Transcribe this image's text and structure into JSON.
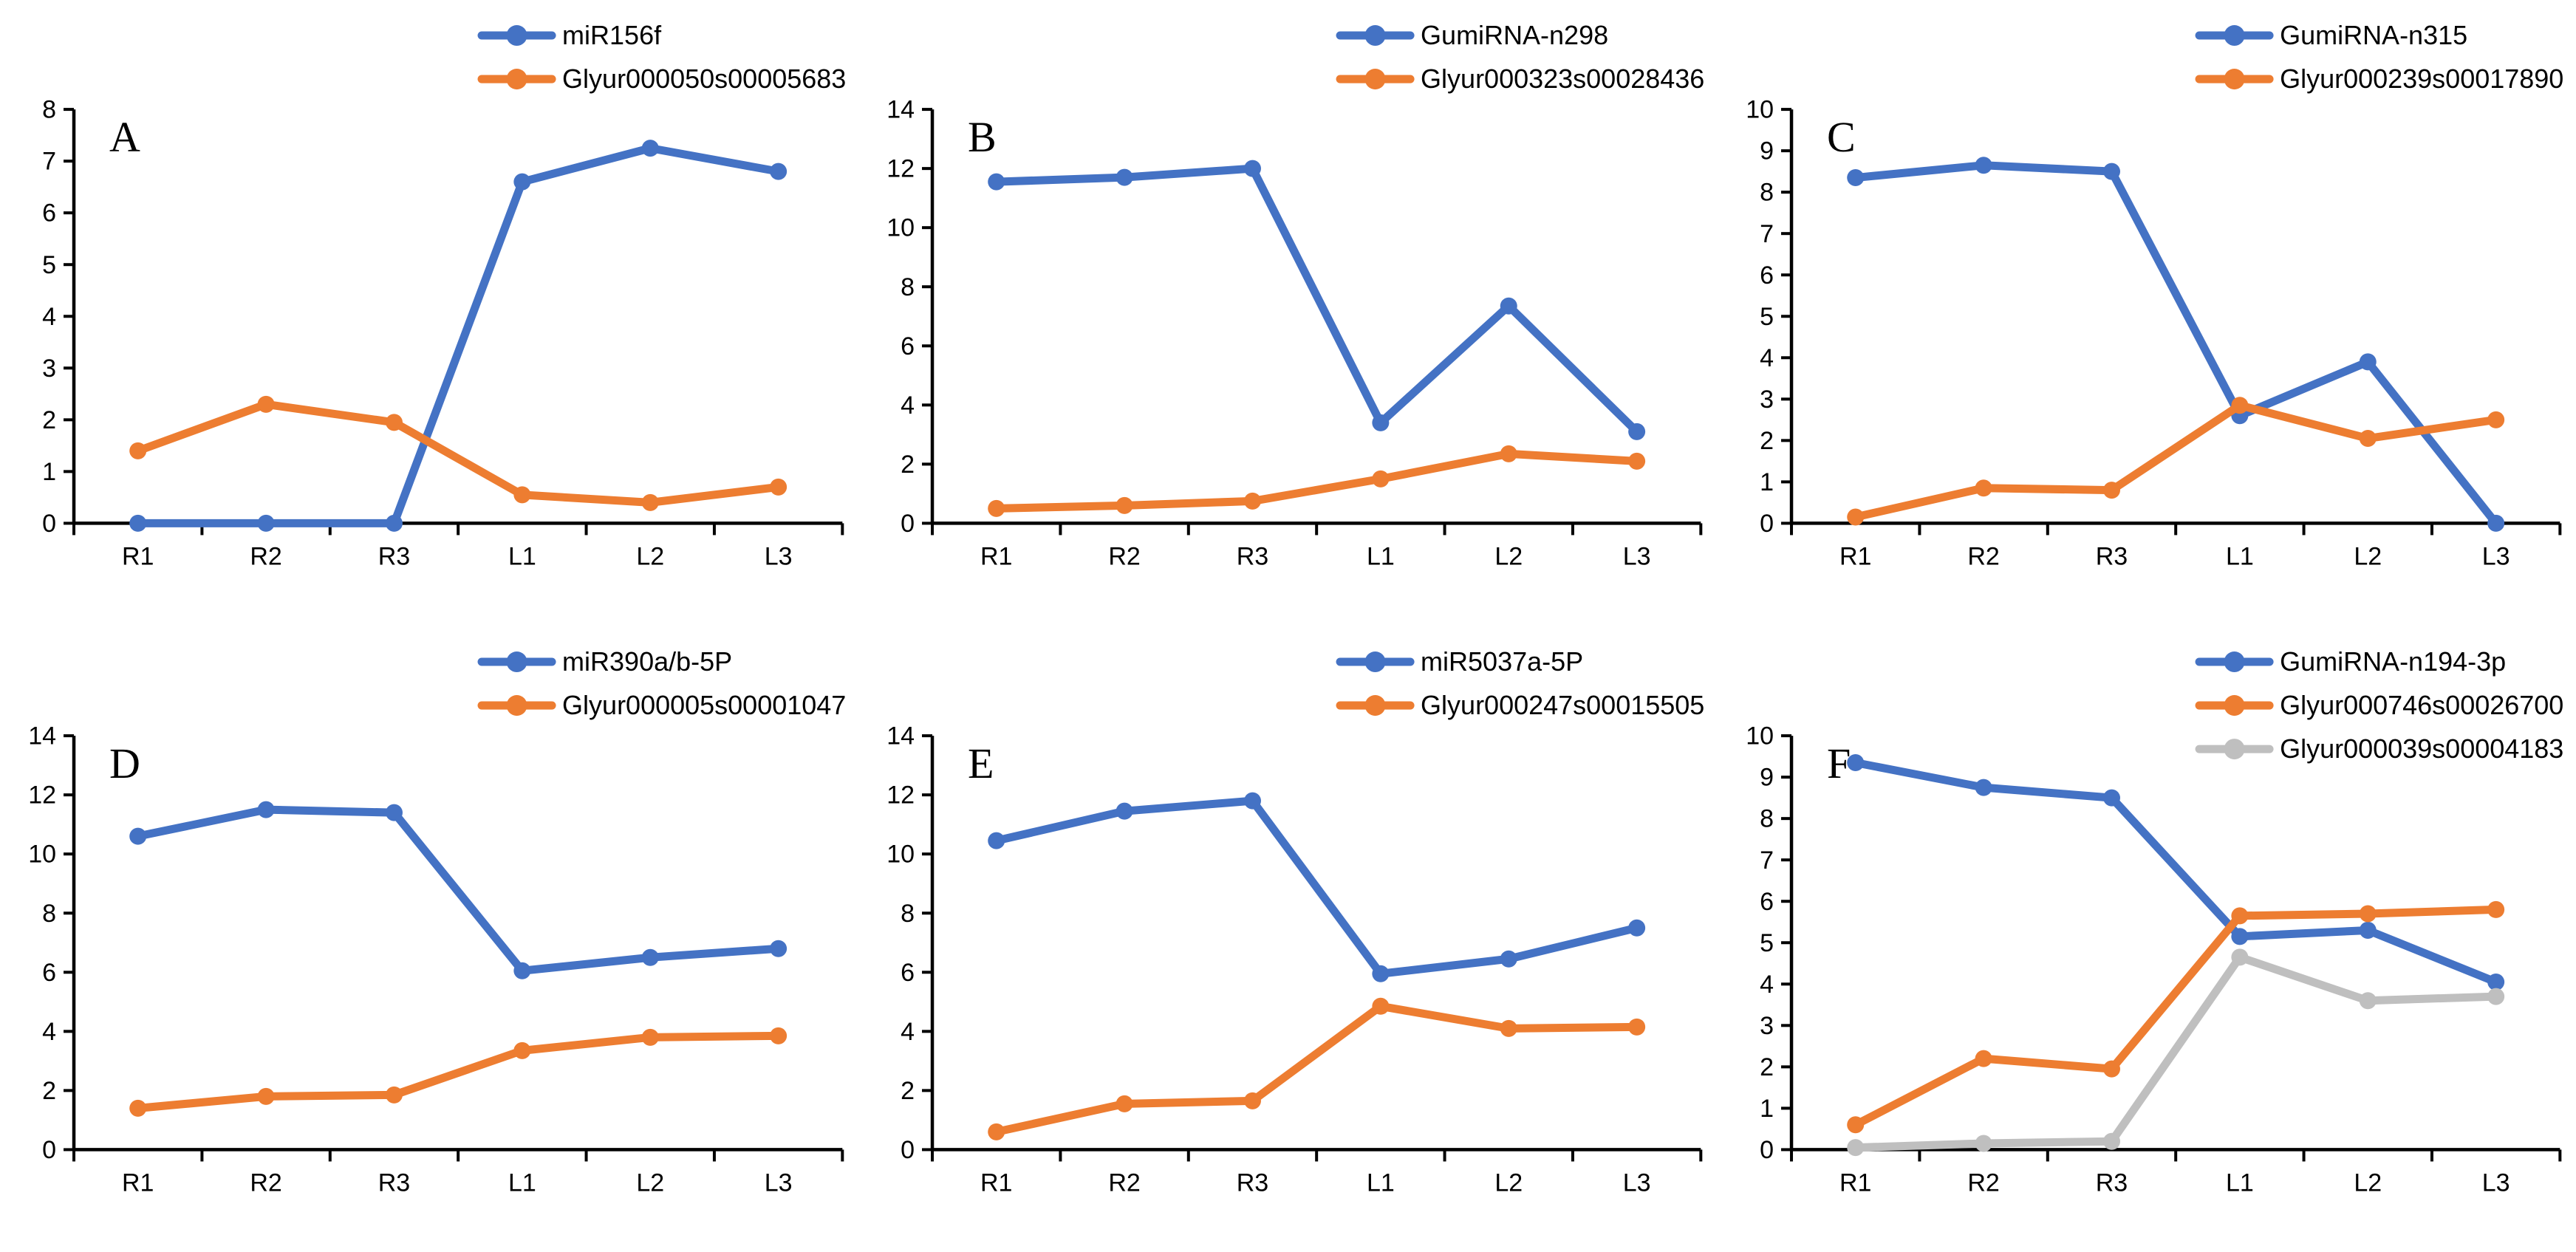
{
  "page": {
    "background": "#ffffff",
    "description": "Six-panel line chart figure comparing miRNA and target gene expression across root (R1-R3) and leaf (L1-L3) samples"
  },
  "colors": {
    "series_blue": "#4472C4",
    "series_orange": "#ED7D31",
    "series_gray": "#BFBFBF",
    "axis": "#000000",
    "text": "#000000"
  },
  "chart_data": [
    {
      "type": "line",
      "panel_label": "A",
      "categories": [
        "R1",
        "R2",
        "R3",
        "L1",
        "L2",
        "L3"
      ],
      "ylim": [
        0,
        8
      ],
      "ytick_step": 1,
      "ytick_labels": [
        "0",
        "1",
        "2",
        "3",
        "4",
        "5",
        "6",
        "7",
        "8"
      ],
      "grid": false,
      "legend_position": "top-right",
      "series": [
        {
          "name": "miR156f",
          "color": "#4472C4",
          "marker": "circle",
          "values": [
            0,
            0,
            0,
            6.6,
            7.25,
            6.8
          ]
        },
        {
          "name": "Glyur000050s00005683",
          "color": "#ED7D31",
          "marker": "circle",
          "values": [
            1.4,
            2.3,
            1.95,
            0.55,
            0.4,
            0.7
          ]
        }
      ]
    },
    {
      "type": "line",
      "panel_label": "B",
      "categories": [
        "R1",
        "R2",
        "R3",
        "L1",
        "L2",
        "L3"
      ],
      "ylim": [
        0,
        14
      ],
      "ytick_step": 2,
      "ytick_labels": [
        "0",
        "2",
        "4",
        "6",
        "8",
        "10",
        "12",
        "14"
      ],
      "grid": false,
      "legend_position": "top-right",
      "series": [
        {
          "name": "GumiRNA-n298",
          "color": "#4472C4",
          "marker": "circle",
          "values": [
            11.55,
            11.7,
            12,
            3.4,
            7.35,
            3.1
          ]
        },
        {
          "name": "Glyur000323s00028436",
          "color": "#ED7D31",
          "marker": "circle",
          "values": [
            0.5,
            0.6,
            0.75,
            1.5,
            2.35,
            2.1
          ]
        }
      ]
    },
    {
      "type": "line",
      "panel_label": "C",
      "categories": [
        "R1",
        "R2",
        "R3",
        "L1",
        "L2",
        "L3"
      ],
      "ylim": [
        0,
        10
      ],
      "ytick_step": 1,
      "ytick_labels": [
        "0",
        "1",
        "2",
        "3",
        "4",
        "5",
        "6",
        "7",
        "8",
        "9",
        "10"
      ],
      "grid": false,
      "legend_position": "top-right",
      "series": [
        {
          "name": "GumiRNA-n315",
          "color": "#4472C4",
          "marker": "circle",
          "values": [
            8.35,
            8.65,
            8.5,
            2.6,
            3.9,
            0
          ]
        },
        {
          "name": "Glyur000239s00017890",
          "color": "#ED7D31",
          "marker": "circle",
          "values": [
            0.15,
            0.85,
            0.8,
            2.85,
            2.05,
            2.5
          ]
        }
      ]
    },
    {
      "type": "line",
      "panel_label": "D",
      "categories": [
        "R1",
        "R2",
        "R3",
        "L1",
        "L2",
        "L3"
      ],
      "ylim": [
        0,
        14
      ],
      "ytick_step": 2,
      "ytick_labels": [
        "0",
        "2",
        "4",
        "6",
        "8",
        "10",
        "12",
        "14"
      ],
      "grid": false,
      "legend_position": "top-right",
      "series": [
        {
          "name": "miR390a/b-5P",
          "color": "#4472C4",
          "marker": "circle",
          "values": [
            10.6,
            11.5,
            11.4,
            6.05,
            6.5,
            6.8
          ]
        },
        {
          "name": "Glyur000005s00001047",
          "color": "#ED7D31",
          "marker": "circle",
          "values": [
            1.4,
            1.8,
            1.85,
            3.35,
            3.8,
            3.85
          ]
        }
      ]
    },
    {
      "type": "line",
      "panel_label": "E",
      "categories": [
        "R1",
        "R2",
        "R3",
        "L1",
        "L2",
        "L3"
      ],
      "ylim": [
        0,
        14
      ],
      "ytick_step": 2,
      "ytick_labels": [
        "0",
        "2",
        "4",
        "6",
        "8",
        "10",
        "12",
        "14"
      ],
      "grid": false,
      "legend_position": "top-right",
      "series": [
        {
          "name": "miR5037a-5P",
          "color": "#4472C4",
          "marker": "circle",
          "values": [
            10.45,
            11.45,
            11.8,
            5.95,
            6.45,
            7.5
          ]
        },
        {
          "name": "Glyur000247s00015505",
          "color": "#ED7D31",
          "marker": "circle",
          "values": [
            0.6,
            1.55,
            1.65,
            4.85,
            4.1,
            4.15
          ]
        }
      ]
    },
    {
      "type": "line",
      "panel_label": "F",
      "categories": [
        "R1",
        "R2",
        "R3",
        "L1",
        "L2",
        "L3"
      ],
      "ylim": [
        0,
        10
      ],
      "ytick_step": 1,
      "ytick_labels": [
        "0",
        "1",
        "2",
        "3",
        "4",
        "5",
        "6",
        "7",
        "8",
        "9",
        "10"
      ],
      "grid": false,
      "legend_position": "top-right",
      "series": [
        {
          "name": "GumiRNA-n194-3p",
          "color": "#4472C4",
          "marker": "circle",
          "values": [
            9.35,
            8.75,
            8.5,
            5.15,
            5.3,
            4.05
          ]
        },
        {
          "name": "Glyur000746s00026700",
          "color": "#ED7D31",
          "marker": "circle",
          "values": [
            0.6,
            2.2,
            1.95,
            5.65,
            5.7,
            5.8
          ]
        },
        {
          "name": "Glyur000039s00004183",
          "color": "#BFBFBF",
          "marker": "circle",
          "values": [
            0.05,
            0.15,
            0.2,
            4.65,
            3.6,
            3.7
          ]
        }
      ]
    }
  ]
}
